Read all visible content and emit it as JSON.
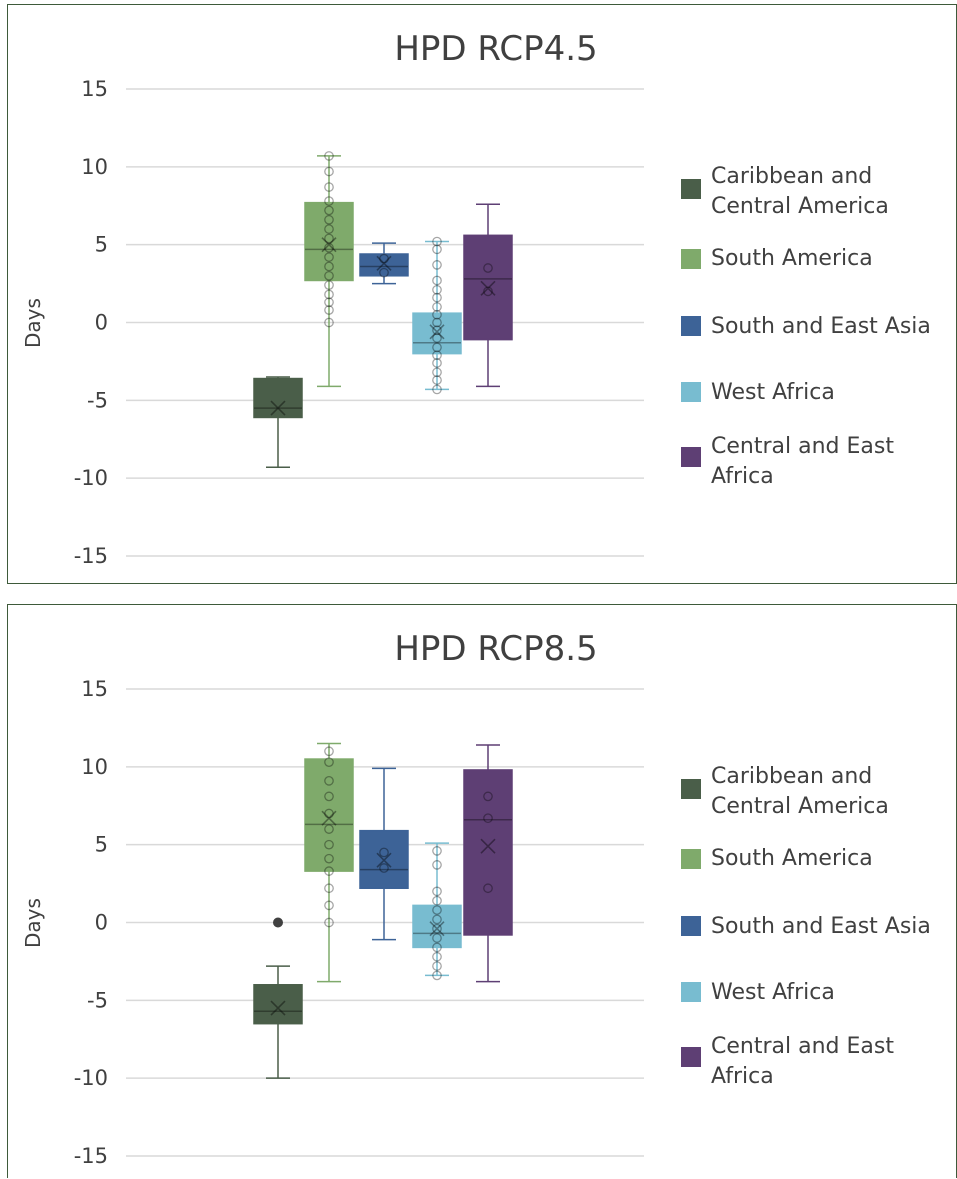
{
  "chart_data": [
    {
      "type": "box",
      "title": "HPD RCP4.5",
      "ylabel": "Days",
      "ylim": [
        -15,
        15
      ],
      "yticks": [
        15,
        10,
        5,
        0,
        -5,
        -10,
        -15
      ],
      "grid": true,
      "legend_position": "right",
      "series": [
        {
          "name": "Caribbean and Central America",
          "color": "#4a5e49",
          "whisker_low": -9.3,
          "q1": -6.1,
          "median": -5.5,
          "q3": -3.6,
          "whisker_high": -3.5,
          "mean": -5.5,
          "points": [],
          "outliers": []
        },
        {
          "name": "South America",
          "color": "#7faa6b",
          "whisker_low": -4.1,
          "q1": 2.7,
          "median": 4.7,
          "q3": 7.7,
          "whisker_high": 10.7,
          "mean": 5.0,
          "points": [
            0.0,
            0.8,
            1.3,
            1.8,
            2.4,
            3.0,
            3.6,
            4.2,
            4.8,
            5.4,
            6.0,
            6.6,
            7.2,
            7.8,
            8.7,
            9.7,
            10.7
          ],
          "outliers": []
        },
        {
          "name": "South and East Asia",
          "color": "#3d6397",
          "whisker_low": 2.5,
          "q1": 3.0,
          "median": 3.6,
          "q3": 4.4,
          "whisker_high": 5.1,
          "mean": 3.8,
          "points": [
            3.2,
            4.1
          ],
          "outliers": []
        },
        {
          "name": "West Africa",
          "color": "#78bcd0",
          "whisker_low": -4.3,
          "q1": -2.0,
          "median": -1.3,
          "q3": 0.6,
          "whisker_high": 5.2,
          "mean": -0.6,
          "points": [
            -4.3,
            -3.7,
            -3.2,
            -2.6,
            -2.1,
            -1.6,
            -1.0,
            -0.5,
            0.0,
            0.5,
            1.0,
            1.6,
            2.1,
            2.7,
            3.7,
            4.7,
            5.2
          ],
          "outliers": []
        },
        {
          "name": "Central and East Africa",
          "color": "#5e3f74",
          "whisker_low": -4.1,
          "q1": -1.1,
          "median": 2.8,
          "q3": 5.6,
          "whisker_high": 7.6,
          "mean": 2.2,
          "points": [
            2.0,
            3.5
          ],
          "outliers": []
        }
      ]
    },
    {
      "type": "box",
      "title": "HPD RCP8.5",
      "ylabel": "Days",
      "ylim": [
        -15,
        15
      ],
      "yticks": [
        15,
        10,
        5,
        0,
        -5,
        -10,
        -15
      ],
      "grid": true,
      "legend_position": "right",
      "series": [
        {
          "name": "Caribbean and Central America",
          "color": "#4a5e49",
          "whisker_low": -10.0,
          "q1": -6.5,
          "median": -5.7,
          "q3": -4.0,
          "whisker_high": -2.8,
          "mean": -5.5,
          "points": [],
          "outliers": [
            0.0
          ]
        },
        {
          "name": "South America",
          "color": "#7faa6b",
          "whisker_low": -3.8,
          "q1": 3.3,
          "median": 6.3,
          "q3": 10.5,
          "whisker_high": 11.5,
          "mean": 6.7,
          "points": [
            0.0,
            1.1,
            2.2,
            3.3,
            4.1,
            5.0,
            6.0,
            7.0,
            8.1,
            9.1,
            10.3,
            11.0
          ],
          "outliers": []
        },
        {
          "name": "South and East Asia",
          "color": "#3d6397",
          "whisker_low": -1.1,
          "q1": 2.2,
          "median": 3.4,
          "q3": 5.9,
          "whisker_high": 9.9,
          "mean": 4.0,
          "points": [
            3.5,
            4.5
          ],
          "outliers": []
        },
        {
          "name": "West Africa",
          "color": "#78bcd0",
          "whisker_low": -3.4,
          "q1": -1.6,
          "median": -0.7,
          "q3": 1.1,
          "whisker_high": 5.1,
          "mean": -0.4,
          "points": [
            -3.4,
            -2.8,
            -2.2,
            -1.6,
            -1.0,
            -0.4,
            0.2,
            0.8,
            1.4,
            2.0,
            3.7,
            4.6
          ],
          "outliers": []
        },
        {
          "name": "Central and East Africa",
          "color": "#5e3f74",
          "whisker_low": -3.8,
          "q1": -0.8,
          "median": 6.6,
          "q3": 9.8,
          "whisker_high": 11.4,
          "mean": 4.9,
          "points": [
            2.2,
            6.7,
            8.1
          ],
          "outliers": []
        }
      ]
    }
  ]
}
